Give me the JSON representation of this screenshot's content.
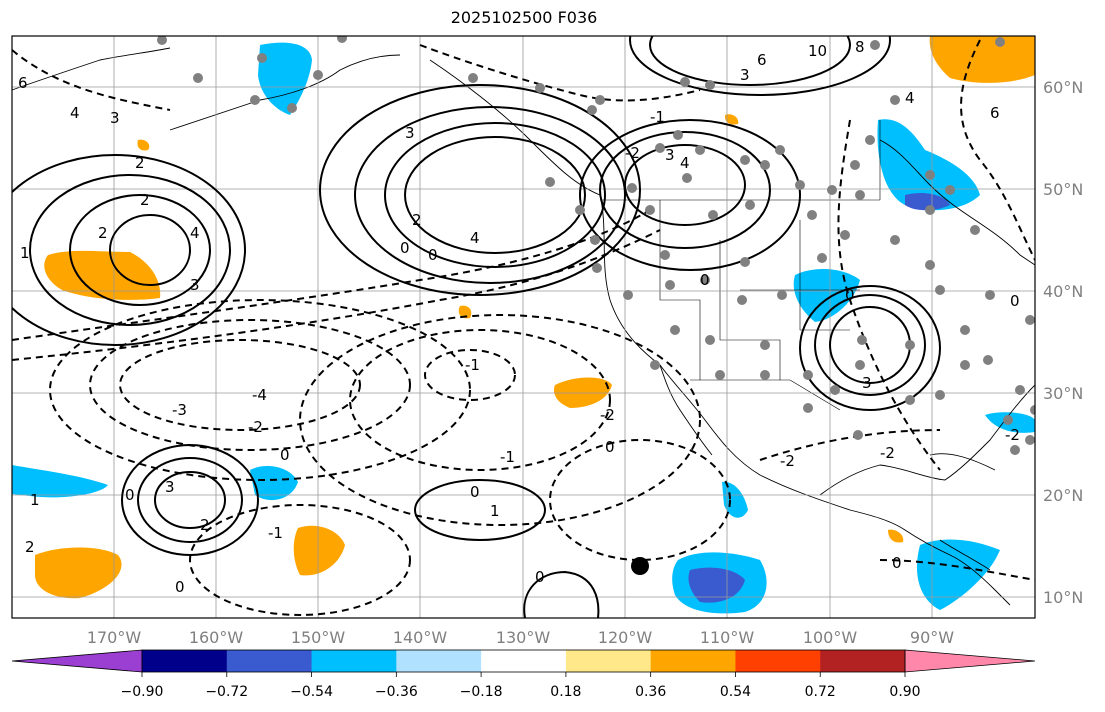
{
  "title": "2025102500 F036",
  "lon_ticks": [
    "170°W",
    "160°W",
    "150°W",
    "140°W",
    "130°W",
    "120°W",
    "110°W",
    "100°W",
    "90°W"
  ],
  "lat_ticks": [
    "60°N",
    "50°N",
    "40°N",
    "30°N",
    "20°N",
    "10°N"
  ],
  "colorbar": {
    "levels": [
      "−0.90",
      "−0.72",
      "−0.54",
      "−0.36",
      "−0.18",
      "0.18",
      "0.36",
      "0.54",
      "0.72",
      "0.90"
    ],
    "colors": [
      "#9b3fd3",
      "#00008b",
      "#3a5bd0",
      "#00bfff",
      "#b0e2ff",
      "#ffffff",
      "#ffe88a",
      "#ffa500",
      "#ff4000",
      "#b22222",
      "#ff88aa"
    ]
  },
  "contour_labels": [
    "6",
    "4",
    "3",
    "2",
    "1",
    "0",
    "-1",
    "-2",
    "-3",
    "-4",
    "10",
    "8"
  ],
  "map_extent": {
    "lon": [
      -180,
      -80
    ],
    "lat": [
      8,
      65
    ]
  }
}
